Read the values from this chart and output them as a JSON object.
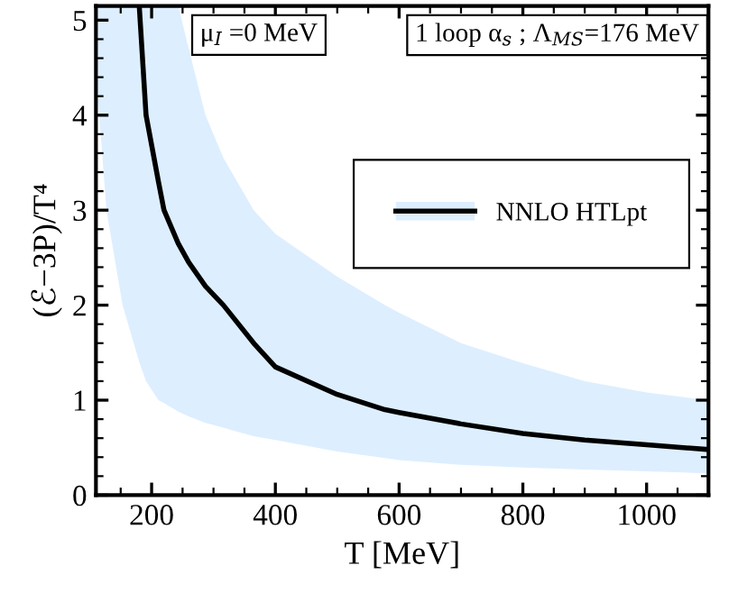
{
  "chart_data": {
    "type": "line",
    "xlabel": "T [MeV]",
    "ylabel": "(ℰ−3P)/T⁴",
    "x": [
      113,
      127,
      153,
      180,
      191,
      211,
      220,
      243,
      260,
      287,
      316,
      365,
      400,
      500,
      577,
      600,
      700,
      800,
      900,
      1000,
      1100
    ],
    "series": [
      {
        "name": "NNLO HTLpt",
        "color": "#000000",
        "values": [
          null,
          null,
          null,
          5.15,
          4,
          3.3,
          3.0,
          2.65,
          2.45,
          2.2,
          2.0,
          1.6,
          1.35,
          1.06,
          0.9,
          0.87,
          0.75,
          0.65,
          0.58,
          0.53,
          0.48
        ],
        "lower": [
          4.2,
          3,
          2,
          1.4,
          1.2,
          1,
          0.97,
          0.88,
          0.83,
          0.76,
          0.71,
          0.62,
          0.58,
          0.46,
          0.39,
          0.37,
          0.32,
          0.29,
          0.27,
          0.25,
          0.23
        ],
        "upper": [
          5.15,
          5.15,
          5.15,
          5.15,
          5.15,
          5.15,
          5.15,
          5.15,
          4.7,
          4,
          3.55,
          3,
          2.75,
          2.3,
          2,
          1.92,
          1.6,
          1.39,
          1.2,
          1.08,
          1.0
        ]
      }
    ],
    "annotations": [
      "μ$_{I}$ =0 MeV",
      "1 loop α$_{s}$ ; Λ$_{MS}$=176 MeV"
    ],
    "xlim": [
      110,
      1100
    ],
    "ylim": [
      0,
      5.15
    ],
    "xticks": [
      200,
      400,
      600,
      800,
      1000
    ],
    "yticks": [
      0,
      1,
      2,
      3,
      4,
      5
    ],
    "grid": false,
    "legend": "right",
    "line_style": "solid",
    "marker": "none"
  }
}
